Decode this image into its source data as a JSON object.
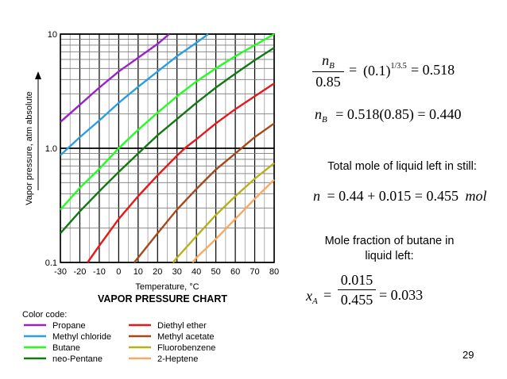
{
  "chart_data": {
    "type": "line",
    "title": "VAPOR PRESSURE CHART",
    "xlabel": "Temperature, °C",
    "ylabel": "Vapor pressure, atm absolute",
    "xlim": [
      -30,
      80
    ],
    "ylim": [
      0.1,
      10
    ],
    "yscale": "log",
    "x_ticks": [
      -30,
      -20,
      -10,
      0,
      10,
      20,
      30,
      40,
      50,
      60,
      70,
      80
    ],
    "x_tick_labels": [
      "-30",
      "-20",
      "-10",
      "0",
      "10",
      "20",
      "30",
      "40",
      "50",
      "60",
      "70",
      "80"
    ],
    "y_tick_labels": [
      "10",
      "1.0",
      "0.1"
    ],
    "grid": true,
    "legend_title": "Color code:",
    "series": [
      {
        "name": "Propane",
        "color": "#9b22c8",
        "points": [
          [
            -30,
            1.7
          ],
          [
            -20,
            2.4
          ],
          [
            -10,
            3.4
          ],
          [
            0,
            4.7
          ],
          [
            10,
            6.2
          ],
          [
            20,
            8.2
          ],
          [
            26,
            10.0
          ]
        ]
      },
      {
        "name": "Methyl chloride",
        "color": "#2a9fe0",
        "points": [
          [
            -30,
            0.87
          ],
          [
            -20,
            1.25
          ],
          [
            -10,
            1.75
          ],
          [
            0,
            2.5
          ],
          [
            10,
            3.45
          ],
          [
            20,
            4.7
          ],
          [
            30,
            6.4
          ],
          [
            40,
            8.4
          ],
          [
            46,
            10.0
          ]
        ]
      },
      {
        "name": "Butane",
        "color": "#20ff20",
        "points": [
          [
            -30,
            0.29
          ],
          [
            -20,
            0.45
          ],
          [
            -10,
            0.66
          ],
          [
            0,
            1.0
          ],
          [
            10,
            1.45
          ],
          [
            20,
            2.05
          ],
          [
            30,
            2.85
          ],
          [
            40,
            3.85
          ],
          [
            50,
            5.0
          ],
          [
            60,
            6.4
          ],
          [
            70,
            8.0
          ],
          [
            80,
            10.0
          ]
        ]
      },
      {
        "name": "neo-Pentane",
        "color": "#127812",
        "points": [
          [
            -30,
            0.18
          ],
          [
            -20,
            0.28
          ],
          [
            -10,
            0.42
          ],
          [
            0,
            0.62
          ],
          [
            10,
            0.9
          ],
          [
            20,
            1.3
          ],
          [
            30,
            1.8
          ],
          [
            40,
            2.5
          ],
          [
            50,
            3.4
          ],
          [
            60,
            4.5
          ],
          [
            70,
            5.9
          ],
          [
            80,
            7.6
          ]
        ]
      },
      {
        "name": "Diethyl ether",
        "color": "#e81818",
        "points": [
          [
            -16,
            0.1
          ],
          [
            -10,
            0.14
          ],
          [
            0,
            0.24
          ],
          [
            10,
            0.38
          ],
          [
            20,
            0.58
          ],
          [
            30,
            0.86
          ],
          [
            34,
            1.0
          ],
          [
            40,
            1.2
          ],
          [
            50,
            1.65
          ],
          [
            60,
            2.2
          ],
          [
            70,
            2.85
          ],
          [
            80,
            3.7
          ]
        ]
      },
      {
        "name": "Methyl acetate",
        "color": "#a8481a",
        "points": [
          [
            8,
            0.1
          ],
          [
            10,
            0.11
          ],
          [
            20,
            0.18
          ],
          [
            30,
            0.29
          ],
          [
            40,
            0.44
          ],
          [
            50,
            0.65
          ],
          [
            60,
            0.9
          ],
          [
            70,
            1.25
          ],
          [
            80,
            1.65
          ]
        ]
      },
      {
        "name": "Fluorobenzene",
        "color": "#b8b018",
        "points": [
          [
            28,
            0.1
          ],
          [
            30,
            0.11
          ],
          [
            40,
            0.17
          ],
          [
            50,
            0.26
          ],
          [
            60,
            0.38
          ],
          [
            70,
            0.54
          ],
          [
            80,
            0.74
          ]
        ]
      },
      {
        "name": "2-Heptene",
        "color": "#f8a860",
        "points": [
          [
            38,
            0.1
          ],
          [
            40,
            0.11
          ],
          [
            50,
            0.16
          ],
          [
            60,
            0.24
          ],
          [
            70,
            0.36
          ],
          [
            80,
            0.53
          ]
        ]
      }
    ]
  },
  "equations": {
    "eq1_num": "n",
    "eq1_num_sub": "B",
    "eq1_den": "0.85",
    "eq1_eq": "=",
    "eq1_base": "(0.1)",
    "eq1_exp": "1/3.5",
    "eq1_rhs": "= 0.518",
    "eq2_lhs": "n",
    "eq2_sub": "B",
    "eq2_rhs": "= 0.518(0.85) = 0.440",
    "eq3_lhs": "n",
    "eq3_rhs": "= 0.44 + 0.015 = 0.455",
    "eq3_unit": "mol",
    "eq4_lhs": "x",
    "eq4_sub": "A",
    "eq4_eq": "=",
    "eq4_num": "0.015",
    "eq4_den": "0.455",
    "eq4_rhs": "= 0.033"
  },
  "text": {
    "total_mole": "Total mole of liquid left in still:",
    "mole_fraction_line1": "Mole fraction of butane in",
    "mole_fraction_line2": "liquid left:",
    "slide_number": "29"
  }
}
